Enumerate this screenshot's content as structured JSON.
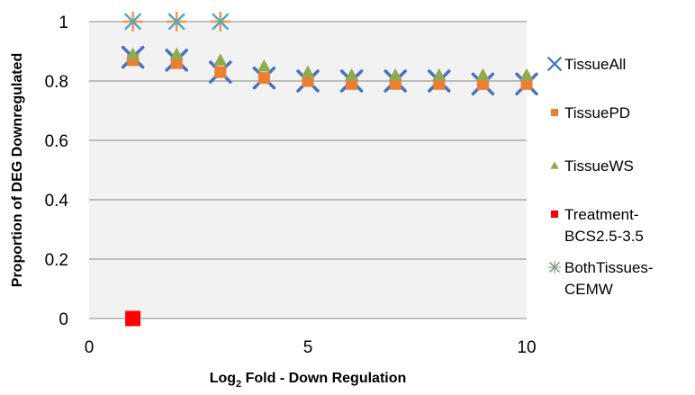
{
  "chart_data": {
    "type": "scatter",
    "xlabel": "Log2 Fold - Down Regulation",
    "xlabel_main": "Log",
    "xlabel_sub": "2",
    "xlabel_rest": " Fold - Down Regulation",
    "ylabel": "Proportion of DEG Downregulated",
    "xlim": [
      0,
      10
    ],
    "ylim": [
      0,
      1
    ],
    "x_ticks": [
      0,
      5,
      10
    ],
    "y_ticks": [
      0,
      0.2,
      0.4,
      0.6,
      0.8,
      1
    ],
    "grid": "horizontal",
    "legend_position": "right",
    "series": [
      {
        "name": "TissueAll",
        "legend_lines": [
          "TissueAll"
        ],
        "marker": "x",
        "color": "#4472C4",
        "points": [
          [
            1,
            0.88
          ],
          [
            2,
            0.87
          ],
          [
            3,
            0.83
          ],
          [
            4,
            0.81
          ],
          [
            5,
            0.8
          ],
          [
            6,
            0.8
          ],
          [
            7,
            0.8
          ],
          [
            8,
            0.8
          ],
          [
            9,
            0.79
          ],
          [
            10,
            0.79
          ]
        ]
      },
      {
        "name": "TissuePD",
        "legend_lines": [
          "TissuePD"
        ],
        "marker": "square",
        "color": "#ED7D31",
        "points": [
          [
            1,
            0.87
          ],
          [
            2,
            0.86
          ],
          [
            3,
            0.83
          ],
          [
            4,
            0.81
          ],
          [
            5,
            0.8
          ],
          [
            6,
            0.79
          ],
          [
            7,
            0.79
          ],
          [
            8,
            0.79
          ],
          [
            9,
            0.79
          ],
          [
            10,
            0.79
          ]
        ]
      },
      {
        "name": "TissueWS",
        "legend_lines": [
          "TissueWS"
        ],
        "marker": "triangle",
        "color": "#8FAA4F",
        "points": [
          [
            1,
            0.89
          ],
          [
            2,
            0.89
          ],
          [
            3,
            0.87
          ],
          [
            4,
            0.85
          ],
          [
            5,
            0.83
          ],
          [
            6,
            0.82
          ],
          [
            7,
            0.82
          ],
          [
            8,
            0.82
          ],
          [
            9,
            0.82
          ],
          [
            10,
            0.82
          ]
        ]
      },
      {
        "name": "Treatment-BCS2.5-3.5",
        "legend_lines": [
          "Treatment-",
          "BCS2.5-3.5"
        ],
        "marker": "square-large",
        "color": "#FF0000",
        "points": [
          [
            1,
            0
          ]
        ]
      },
      {
        "name": "BothTissues-CEMW",
        "legend_lines": [
          "BothTissues-",
          "CEMW"
        ],
        "marker": "asterisk",
        "color": "#4BACC6",
        "overlay_color": "#F79646",
        "points": [
          [
            1,
            1
          ],
          [
            2,
            1
          ],
          [
            3,
            1
          ]
        ]
      }
    ]
  }
}
